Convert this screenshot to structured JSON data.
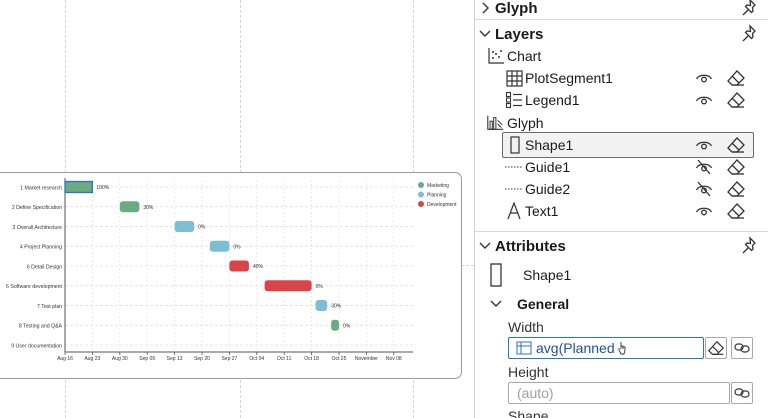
{
  "chart_data": {
    "type": "gantt",
    "tasks": [
      {
        "label": "1 Market research",
        "start": "2023-08-16",
        "end": "2023-08-23",
        "progress_label": "100%",
        "category": "Marketing"
      },
      {
        "label": "2 Define Specification",
        "start": "2023-08-30",
        "end": "2023-09-04",
        "progress_label": "30%",
        "category": "Marketing"
      },
      {
        "label": "3 Overall Architecture",
        "start": "2023-09-13",
        "end": "2023-09-18",
        "progress_label": "0%",
        "category": "Planning"
      },
      {
        "label": "4 Project Planning",
        "start": "2023-09-22",
        "end": "2023-09-27",
        "progress_label": "0%",
        "category": "Planning"
      },
      {
        "label": "6 Detail Design",
        "start": "2023-09-27",
        "end": "2023-10-02",
        "progress_label": "40%",
        "category": "Development"
      },
      {
        "label": "6 Software development",
        "start": "2023-10-06",
        "end": "2023-10-18",
        "progress_label": "0%",
        "category": "Development"
      },
      {
        "label": "7 Test plan",
        "start": "2023-10-19",
        "end": "2023-10-22",
        "progress_label": "30%",
        "category": "Planning"
      },
      {
        "label": "8 Testing and Q&A",
        "start": "2023-10-23",
        "end": "2023-10-25",
        "progress_label": "0%",
        "category": "Marketing"
      },
      {
        "label": "9 User documentation",
        "start": null,
        "end": null,
        "progress_label": "",
        "category": ""
      }
    ],
    "x_ticks": [
      "Aug 16",
      "Aug 23",
      "Aug 30",
      "Sep 06",
      "Sep 13",
      "Sep 20",
      "Sep 27",
      "Oct 04",
      "Oct 11",
      "Oct 18",
      "Oct 25",
      "November",
      "Nov 08"
    ],
    "x_range": [
      "2023-08-16",
      "2023-11-12"
    ],
    "legend": [
      {
        "name": "Marketing",
        "color": "#6aab82"
      },
      {
        "name": "Planning",
        "color": "#7cbfd4"
      },
      {
        "name": "Development",
        "color": "#d9444a"
      }
    ],
    "legend_position": "top-right",
    "grid": true,
    "selected_task_index": 0
  },
  "panel": {
    "glyph_section": {
      "title": "Glyph"
    },
    "layers_section": {
      "title": "Layers",
      "items": [
        {
          "label": "Chart",
          "icon": "scatter-chart-icon"
        },
        {
          "label": "PlotSegment1",
          "icon": "grid-icon"
        },
        {
          "label": "Legend1",
          "icon": "legend-icon"
        },
        {
          "label": "Glyph",
          "icon": "glyph-chart-icon"
        },
        {
          "label": "Shape1",
          "icon": "rectangle-shape-icon"
        },
        {
          "label": "Guide1",
          "icon": "dashed-guide-icon"
        },
        {
          "label": "Guide2",
          "icon": "dashed-guide-icon"
        },
        {
          "label": "Text1",
          "icon": "text-icon"
        }
      ]
    },
    "attributes_section": {
      "title": "Attributes",
      "object_name": "Shape1",
      "general_title": "General",
      "width_label": "Width",
      "width_value": "avg(Planned",
      "height_label": "Height",
      "height_placeholder": "(auto)",
      "shape_label": "Shape"
    }
  },
  "colors": {
    "accent": "#2a74c9",
    "selection_border": "#2a74c9"
  }
}
